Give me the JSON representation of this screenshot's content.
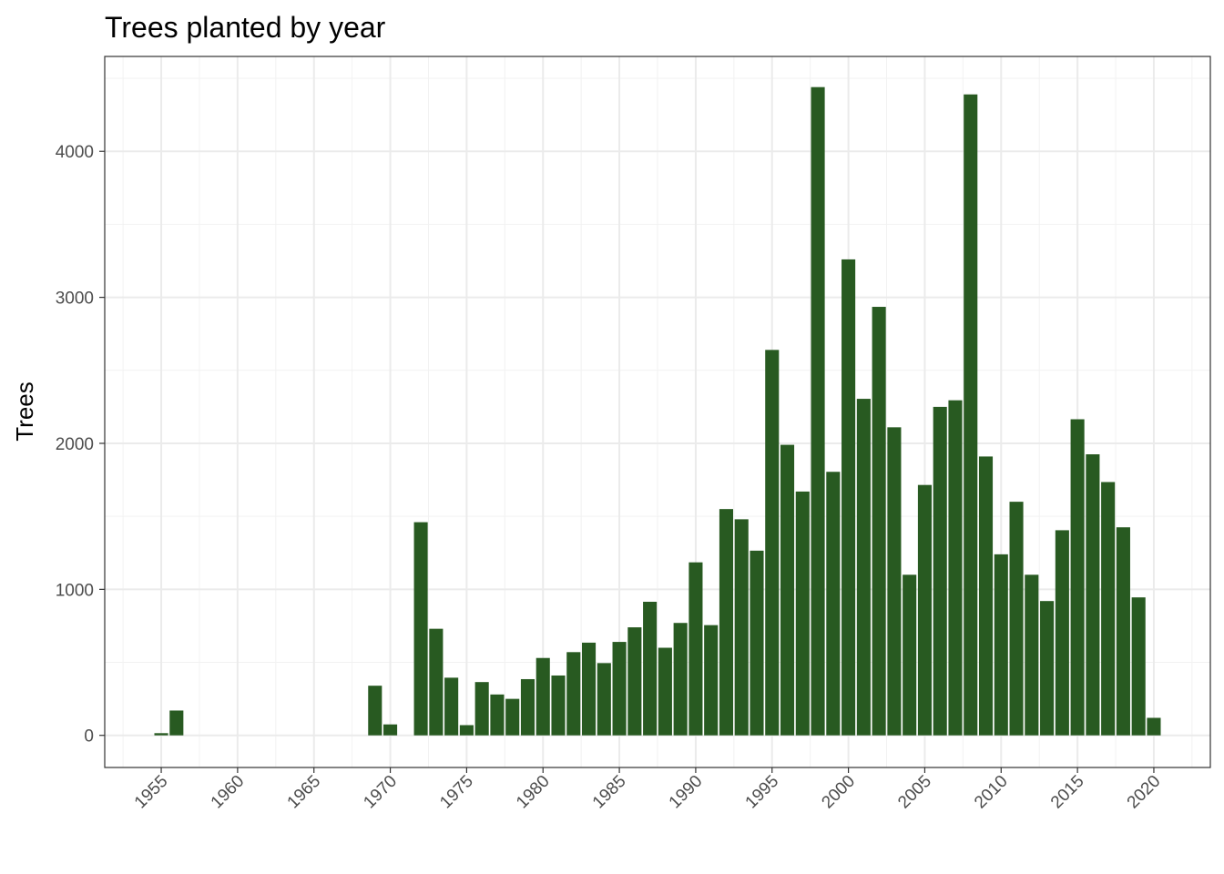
{
  "chart_data": {
    "type": "bar",
    "title": "Trees planted by year",
    "xlabel": "",
    "ylabel": "Trees",
    "bar_color": "#285a21",
    "xlim": [
      1951.3,
      2023.7
    ],
    "ylim": [
      -220,
      4650
    ],
    "x_ticks": [
      1955,
      1960,
      1965,
      1970,
      1975,
      1980,
      1985,
      1990,
      1995,
      2000,
      2005,
      2010,
      2015,
      2020
    ],
    "y_ticks": [
      0,
      1000,
      2000,
      3000,
      4000
    ],
    "grid": true,
    "legend": "none",
    "x": [
      1955,
      1956,
      1969,
      1970,
      1972,
      1973,
      1974,
      1975,
      1976,
      1977,
      1978,
      1979,
      1980,
      1981,
      1982,
      1983,
      1984,
      1985,
      1986,
      1987,
      1988,
      1989,
      1990,
      1991,
      1992,
      1993,
      1994,
      1995,
      1996,
      1997,
      1998,
      1999,
      2000,
      2001,
      2002,
      2003,
      2004,
      2005,
      2006,
      2007,
      2008,
      2009,
      2010,
      2011,
      2012,
      2013,
      2014,
      2015,
      2016,
      2017,
      2018,
      2019,
      2020
    ],
    "values": [
      15,
      170,
      340,
      75,
      1460,
      730,
      395,
      70,
      365,
      280,
      250,
      385,
      530,
      410,
      570,
      635,
      495,
      640,
      740,
      915,
      600,
      770,
      1185,
      755,
      1550,
      1480,
      1265,
      2640,
      1990,
      1670,
      4440,
      1805,
      3260,
      2305,
      2935,
      2110,
      1100,
      1715,
      2250,
      2295,
      4390,
      1910,
      1240,
      1600,
      1100,
      920,
      1405,
      2165,
      1925,
      1735,
      1425,
      945,
      120
    ]
  }
}
